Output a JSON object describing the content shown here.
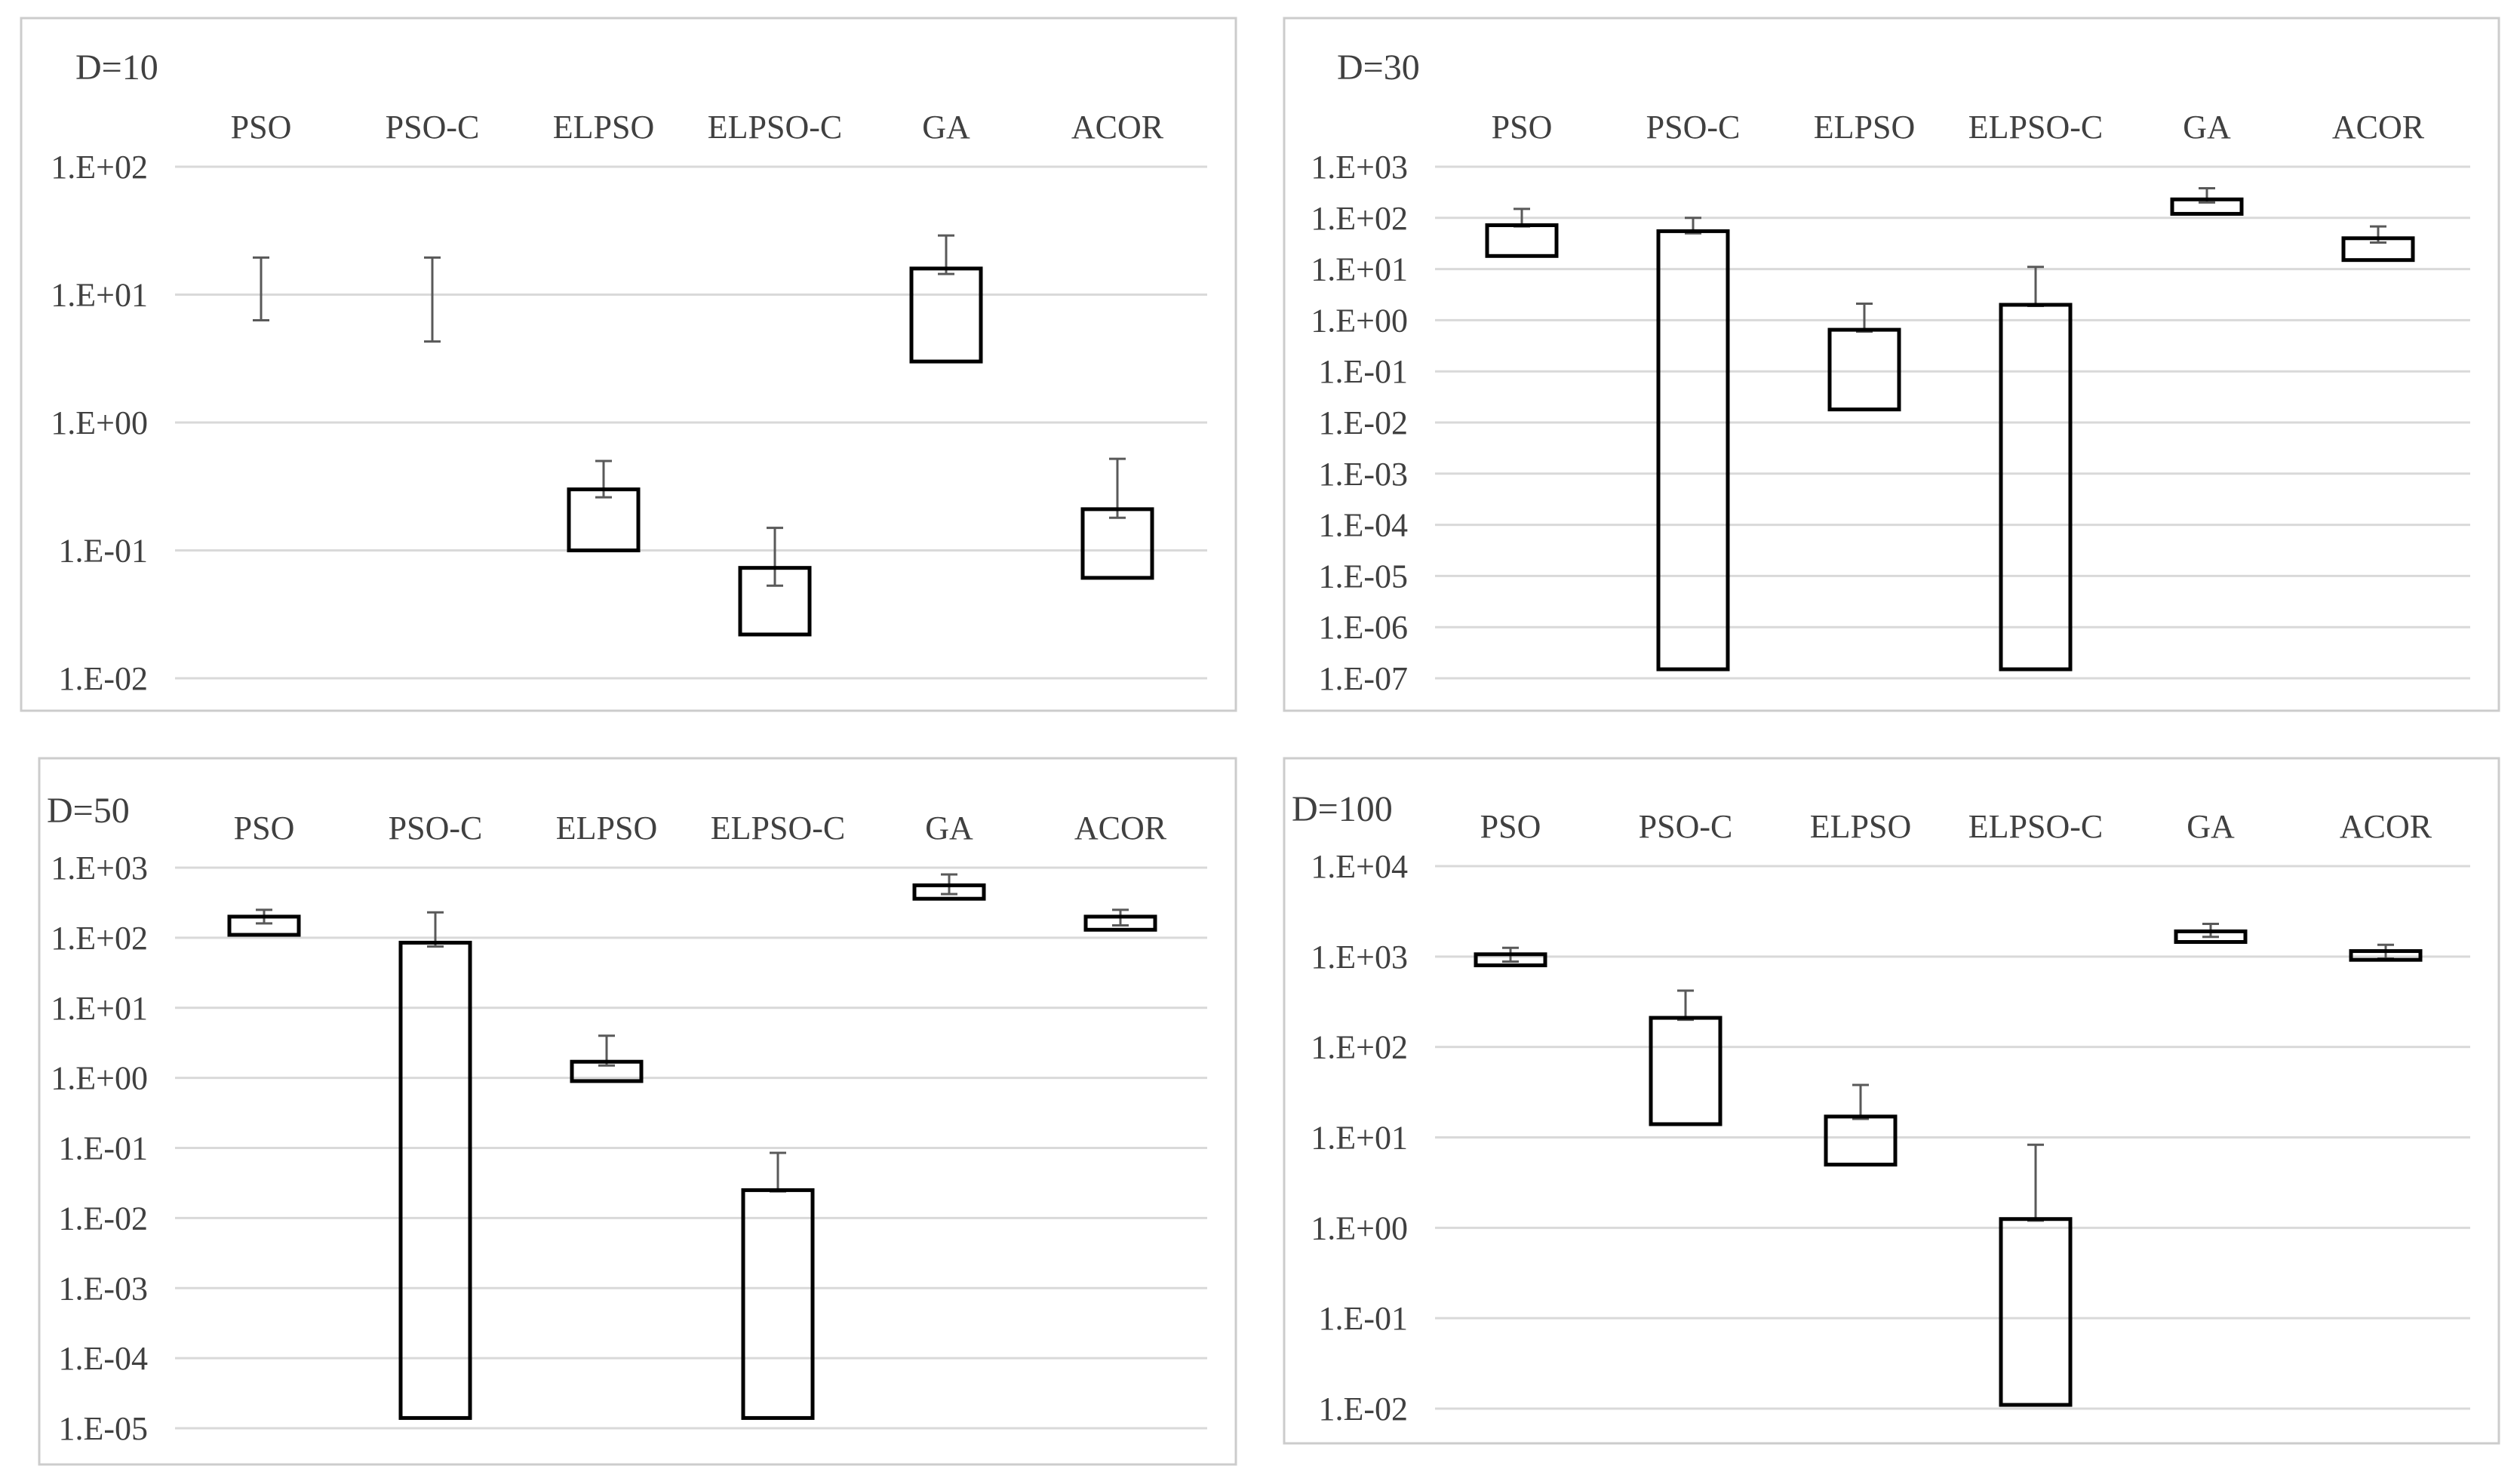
{
  "categories": [
    "PSO",
    "PSO-C",
    "ELPSO",
    "ELPSO-C",
    "GA",
    "ACOR"
  ],
  "colors": {
    "grid": "#d9d9d9",
    "box": "#000000",
    "whisker": "#595959",
    "border": "#cccccc",
    "text": "#404040"
  },
  "chart_data": [
    {
      "type": "box",
      "title": "D=10",
      "log_scale": true,
      "ylim": [
        0.01,
        100
      ],
      "tick_labels": [
        "1.E+02",
        "1.E+01",
        "1.E+00",
        "1.E-01",
        "1.E-02"
      ],
      "categories": [
        "PSO",
        "PSO-C",
        "ELPSO",
        "ELPSO-C",
        "GA",
        "ACOR"
      ],
      "boxes": [
        {
          "category": "PSO",
          "box_low": null,
          "box_high": null,
          "whisker_low": 6.3,
          "whisker_high": 19.5
        },
        {
          "category": "PSO-C",
          "box_low": null,
          "box_high": null,
          "whisker_low": 4.3,
          "whisker_high": 19.5
        },
        {
          "category": "ELPSO",
          "box_low": 0.1,
          "box_high": 0.3,
          "whisker_low": 0.26,
          "whisker_high": 0.5
        },
        {
          "category": "ELPSO-C",
          "box_low": 0.022,
          "box_high": 0.073,
          "whisker_low": 0.053,
          "whisker_high": 0.15
        },
        {
          "category": "GA",
          "box_low": 3.0,
          "box_high": 16.0,
          "whisker_low": 14.5,
          "whisker_high": 29.0
        },
        {
          "category": "ACOR",
          "box_low": 0.061,
          "box_high": 0.21,
          "whisker_low": 0.18,
          "whisker_high": 0.52
        }
      ]
    },
    {
      "type": "box",
      "title": "D=30",
      "log_scale": true,
      "ylim": [
        1e-07,
        1000
      ],
      "tick_labels": [
        "1.E+03",
        "1.E+02",
        "1.E+01",
        "1.E+00",
        "1.E-01",
        "1.E-02",
        "1.E-03",
        "1.E-04",
        "1.E-05",
        "1.E-06",
        "1.E-07"
      ],
      "categories": [
        "PSO",
        "PSO-C",
        "ELPSO",
        "ELPSO-C",
        "GA",
        "ACOR"
      ],
      "boxes": [
        {
          "category": "PSO",
          "box_low": 18,
          "box_high": 72,
          "whisker_low": 68,
          "whisker_high": 150
        },
        {
          "category": "PSO-C",
          "box_low": 1.5e-07,
          "box_high": 55,
          "whisker_low": 50,
          "whisker_high": 100
        },
        {
          "category": "ELPSO",
          "box_low": 0.018,
          "box_high": 0.65,
          "whisker_low": 0.6,
          "whisker_high": 2.1
        },
        {
          "category": "ELPSO-C",
          "box_low": 1.5e-07,
          "box_high": 2.0,
          "whisker_low": 1.9,
          "whisker_high": 11
        },
        {
          "category": "GA",
          "box_low": 120,
          "box_high": 230,
          "whisker_low": 200,
          "whisker_high": 380
        },
        {
          "category": "ACOR",
          "box_low": 15,
          "box_high": 40,
          "whisker_low": 33,
          "whisker_high": 68
        }
      ]
    },
    {
      "type": "box",
      "title": "D=50",
      "log_scale": true,
      "ylim": [
        1e-05,
        1000
      ],
      "tick_labels": [
        "1.E+03",
        "1.E+02",
        "1.E+01",
        "1.E+00",
        "1.E-01",
        "1.E-02",
        "1.E-03",
        "1.E-04",
        "1.E-05"
      ],
      "categories": [
        "PSO",
        "PSO-C",
        "ELPSO",
        "ELPSO-C",
        "GA",
        "ACOR"
      ],
      "boxes": [
        {
          "category": "PSO",
          "box_low": 110,
          "box_high": 200,
          "whisker_low": 160,
          "whisker_high": 250
        },
        {
          "category": "PSO-C",
          "box_low": 1.4e-05,
          "box_high": 85,
          "whisker_low": 75,
          "whisker_high": 230
        },
        {
          "category": "ELPSO",
          "box_low": 0.9,
          "box_high": 1.7,
          "whisker_low": 1.5,
          "whisker_high": 4.0
        },
        {
          "category": "ELPSO-C",
          "box_low": 1.4e-05,
          "box_high": 0.025,
          "whisker_low": 0.024,
          "whisker_high": 0.085
        },
        {
          "category": "GA",
          "box_low": 360,
          "box_high": 560,
          "whisker_low": 420,
          "whisker_high": 800
        },
        {
          "category": "ACOR",
          "box_low": 130,
          "box_high": 200,
          "whisker_low": 150,
          "whisker_high": 250
        }
      ]
    },
    {
      "type": "box",
      "title": "D=100",
      "log_scale": true,
      "ylim": [
        0.01,
        10000
      ],
      "tick_labels": [
        "1.E+04",
        "1.E+03",
        "1.E+02",
        "1.E+01",
        "1.E+00",
        "1.E-01",
        "1.E-02"
      ],
      "categories": [
        "PSO",
        "PSO-C",
        "ELPSO",
        "ELPSO-C",
        "GA",
        "ACOR"
      ],
      "boxes": [
        {
          "category": "PSO",
          "box_low": 800,
          "box_high": 1060,
          "whisker_low": 880,
          "whisker_high": 1250
        },
        {
          "category": "PSO-C",
          "box_low": 14,
          "box_high": 210,
          "whisker_low": 200,
          "whisker_high": 420
        },
        {
          "category": "ELPSO",
          "box_low": 5,
          "box_high": 17,
          "whisker_low": 16,
          "whisker_high": 38
        },
        {
          "category": "ELPSO-C",
          "box_low": 0.011,
          "box_high": 1.25,
          "whisker_low": 1.2,
          "whisker_high": 8.3
        },
        {
          "category": "GA",
          "box_low": 1450,
          "box_high": 1900,
          "whisker_low": 1650,
          "whisker_high": 2300
        },
        {
          "category": "ACOR",
          "box_low": 920,
          "box_high": 1150,
          "whisker_low": 950,
          "whisker_high": 1350
        }
      ]
    }
  ]
}
